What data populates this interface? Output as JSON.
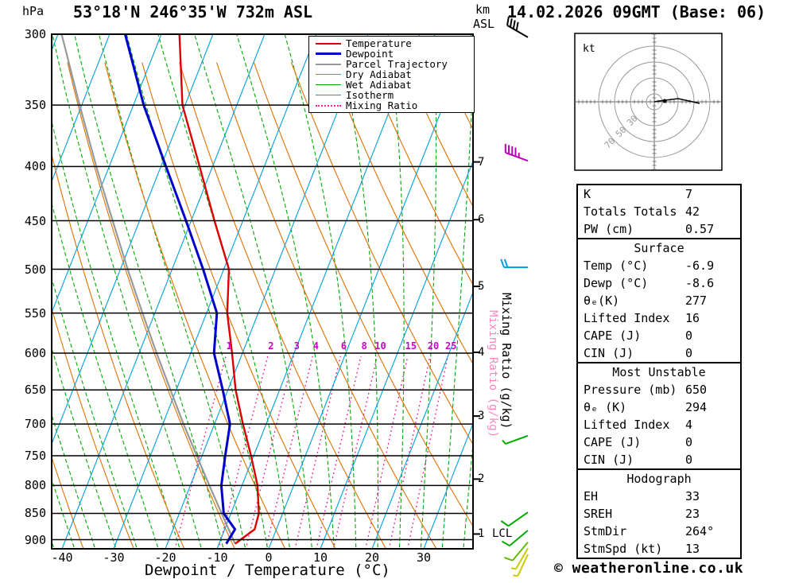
{
  "header": {
    "pressure_unit": "hPa",
    "station": "53°18'N 246°35'W 732m ASL",
    "datetime": "14.02.2026 09GMT (Base: 06)",
    "altitude_unit_top": "km",
    "altitude_unit_bottom": "ASL"
  },
  "axes": {
    "xlabel": "Dewpoint / Temperature (°C)",
    "mixing_ratio_label": "Mixing Ratio (g/kg)",
    "lcl_label": "LCL"
  },
  "legend": {
    "items": [
      {
        "label": "Temperature",
        "color": "#dd0000",
        "style": "solid",
        "width": 2
      },
      {
        "label": "Dewpoint",
        "color": "#0000cc",
        "style": "solid",
        "width": 3
      },
      {
        "label": "Parcel Trajectory",
        "color": "#999999",
        "style": "solid",
        "width": 2
      },
      {
        "label": "Dry Adiabat",
        "color": "#e07000",
        "style": "solid",
        "width": 1
      },
      {
        "label": "Wet Adiabat",
        "color": "#00aa00",
        "style": "solid",
        "width": 1
      },
      {
        "label": "Isotherm",
        "color": "#00a0dd",
        "style": "solid",
        "width": 1
      },
      {
        "label": "Mixing Ratio",
        "color": "#ee2299",
        "style": "dotted",
        "width": 2
      }
    ]
  },
  "chart_data": {
    "type": "skewt_log_p",
    "pressure_levels_hpa": [
      300,
      350,
      400,
      450,
      500,
      550,
      600,
      650,
      700,
      750,
      800,
      850,
      900
    ],
    "temp_ticks_c": [
      -40,
      -30,
      -20,
      -10,
      0,
      10,
      20,
      30
    ],
    "km_asl_ticks": [
      {
        "km": 1,
        "p_hpa": 889
      },
      {
        "km": 2,
        "p_hpa": 789
      },
      {
        "km": 3,
        "p_hpa": 688
      },
      {
        "km": 4,
        "p_hpa": 599
      },
      {
        "km": 5,
        "p_hpa": 519
      },
      {
        "km": 6,
        "p_hpa": 449
      },
      {
        "km": 7,
        "p_hpa": 396
      }
    ],
    "lcl_km": 1,
    "isotherms_c": {
      "min": -90,
      "max": 40,
      "step": 10
    },
    "dry_adiabats_c": {
      "min": -40,
      "max": 120,
      "step": 10
    },
    "wet_adiabats_c": {
      "min": -44,
      "max": 40,
      "step": 4
    },
    "mixing_ratio_lines_gkg": [
      1,
      2,
      3,
      4,
      6,
      8,
      10,
      15,
      20,
      25
    ],
    "sounding": {
      "temperature_c": [
        [
          908,
          -6.9
        ],
        [
          880,
          -4.2
        ],
        [
          850,
          -4.6
        ],
        [
          800,
          -7.0
        ],
        [
          750,
          -10.5
        ],
        [
          700,
          -14.5
        ],
        [
          650,
          -18.5
        ],
        [
          600,
          -22.0
        ],
        [
          550,
          -26.0
        ],
        [
          500,
          -29.0
        ],
        [
          450,
          -35.5
        ],
        [
          400,
          -42.5
        ],
        [
          350,
          -50.5
        ],
        [
          300,
          -56.5
        ]
      ],
      "dewpoint_c": [
        [
          908,
          -8.6
        ],
        [
          880,
          -8.0
        ],
        [
          850,
          -11.4
        ],
        [
          800,
          -14.0
        ],
        [
          750,
          -15.5
        ],
        [
          700,
          -17.0
        ],
        [
          650,
          -21.0
        ],
        [
          600,
          -25.5
        ],
        [
          550,
          -28.0
        ],
        [
          500,
          -34.0
        ],
        [
          450,
          -41.0
        ],
        [
          400,
          -49.0
        ],
        [
          350,
          -58.0
        ],
        [
          300,
          -67.0
        ]
      ],
      "parcel_c": [
        [
          908,
          -6.9
        ],
        [
          850,
          -11.8
        ],
        [
          800,
          -16.3
        ],
        [
          750,
          -21.0
        ],
        [
          700,
          -26.0
        ],
        [
          650,
          -31.1
        ],
        [
          600,
          -36.6
        ],
        [
          550,
          -42.4
        ],
        [
          500,
          -48.6
        ],
        [
          450,
          -55.2
        ],
        [
          400,
          -62.5
        ],
        [
          350,
          -70.4
        ],
        [
          300,
          -79.3
        ]
      ]
    },
    "wind_barbs": [
      {
        "p_hpa": 302,
        "dir_deg": 300,
        "speed_kt": 40,
        "color": "#000000"
      },
      {
        "p_hpa": 395,
        "dir_deg": 290,
        "speed_kt": 45,
        "color": "#bb00bb"
      },
      {
        "p_hpa": 498,
        "dir_deg": 270,
        "speed_kt": 20,
        "color": "#00a0dd"
      },
      {
        "p_hpa": 718,
        "dir_deg": 250,
        "speed_kt": 5,
        "color": "#00aa00"
      },
      {
        "p_hpa": 848,
        "dir_deg": 235,
        "speed_kt": 10,
        "color": "#00aa00"
      },
      {
        "p_hpa": 882,
        "dir_deg": 230,
        "speed_kt": 10,
        "color": "#00aa00"
      },
      {
        "p_hpa": 905,
        "dir_deg": 220,
        "speed_kt": 10,
        "color": "#66bb00"
      },
      {
        "p_hpa": 917,
        "dir_deg": 210,
        "speed_kt": 7,
        "color": "#cccc00"
      },
      {
        "p_hpa": 929,
        "dir_deg": 205,
        "speed_kt": 5,
        "color": "#cccc00"
      }
    ],
    "colors": {
      "temperature": "#dd0000",
      "dewpoint": "#0000cc",
      "parcel": "#999999",
      "dry_adiabat": "#e07000",
      "wet_adiabat": "#00aa00",
      "isotherm": "#00a0dd",
      "mixing_ratio": "#ee2299",
      "mixing_ratio_label": "#cc00cc",
      "pressure_line": "#000000"
    }
  },
  "hodograph": {
    "unit": "kt",
    "rings_kt": [
      10,
      30,
      50,
      70
    ],
    "ring_labels": [
      30,
      50,
      70
    ],
    "trace_kt": [
      [
        0,
        0
      ],
      [
        6,
        1
      ],
      [
        14,
        2
      ],
      [
        30,
        4
      ],
      [
        44,
        1
      ],
      [
        57,
        -2
      ]
    ],
    "marker_kt": [
      13,
      1
    ]
  },
  "table": {
    "sections": [
      {
        "rows": [
          [
            "K",
            "7"
          ],
          [
            "Totals Totals",
            "42"
          ],
          [
            "PW (cm)",
            "0.57"
          ]
        ]
      },
      {
        "title": "Surface",
        "rows": [
          [
            "Temp (°C)",
            "-6.9"
          ],
          [
            "Dewp (°C)",
            "-8.6"
          ],
          [
            "θₑ(K)",
            "277"
          ],
          [
            "Lifted Index",
            "16"
          ],
          [
            "CAPE (J)",
            "0"
          ],
          [
            "CIN (J)",
            "0"
          ]
        ]
      },
      {
        "title": "Most Unstable",
        "rows": [
          [
            "Pressure (mb)",
            "650"
          ],
          [
            "θₑ (K)",
            "294"
          ],
          [
            "Lifted Index",
            "4"
          ],
          [
            "CAPE (J)",
            "0"
          ],
          [
            "CIN (J)",
            "0"
          ]
        ]
      },
      {
        "title": "Hodograph",
        "rows": [
          [
            "EH",
            "33"
          ],
          [
            "SREH",
            "23"
          ],
          [
            "StmDir",
            "264°"
          ],
          [
            "StmSpd (kt)",
            "13"
          ]
        ]
      }
    ]
  },
  "footer": {
    "copyright": "© weatheronline.co.uk"
  }
}
